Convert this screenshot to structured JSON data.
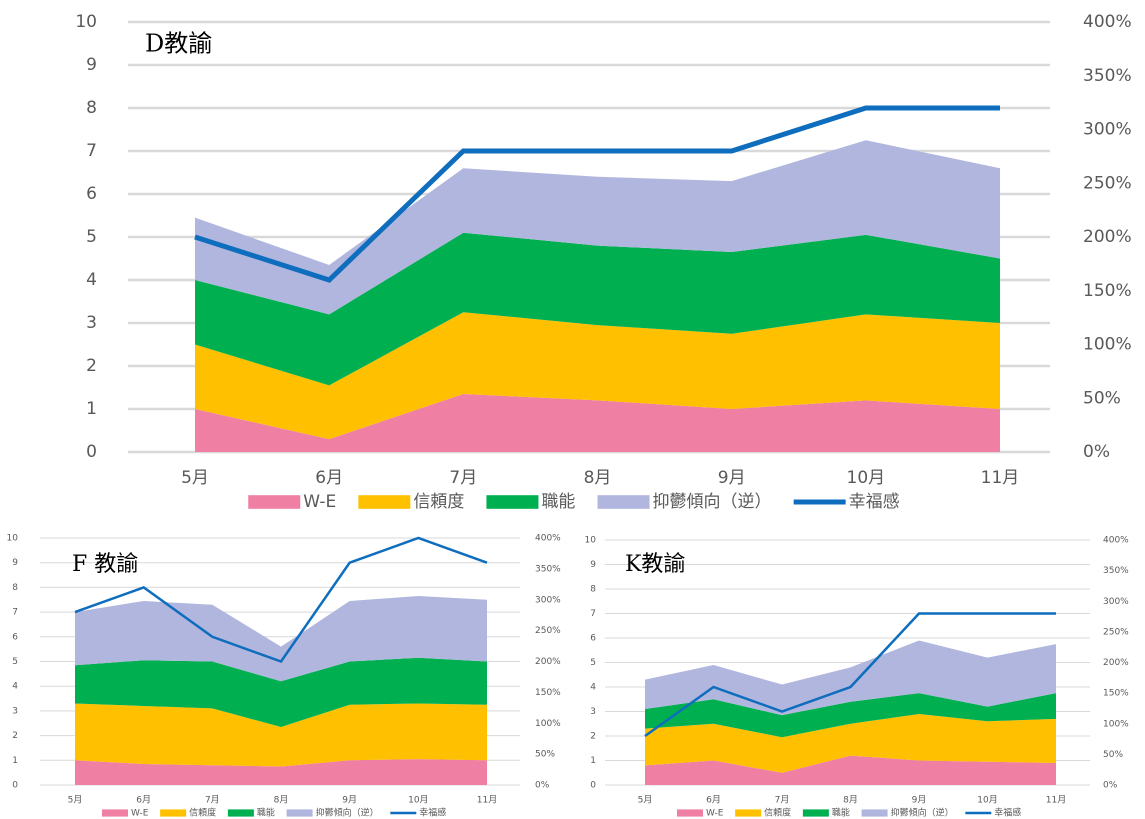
{
  "chart_data": [
    {
      "type": "area",
      "title": "D教諭",
      "categories": [
        "5月",
        "6月",
        "7月",
        "8月",
        "9月",
        "10月",
        "11月"
      ],
      "series": [
        {
          "name": "W-E",
          "color": "#f07fa4",
          "values": [
            1.0,
            0.3,
            1.35,
            1.2,
            1.0,
            1.2,
            1.0
          ]
        },
        {
          "name": "信頼度",
          "color": "#ffc000",
          "values": [
            1.5,
            1.25,
            1.9,
            1.75,
            1.75,
            2.0,
            2.0
          ]
        },
        {
          "name": "職能",
          "color": "#00b050",
          "values": [
            1.5,
            1.65,
            1.85,
            1.85,
            1.9,
            1.85,
            1.5
          ]
        },
        {
          "name": "抑鬱傾向（逆）",
          "color": "#b0b6de",
          "values": [
            1.45,
            1.15,
            1.5,
            1.6,
            1.65,
            2.2,
            2.1
          ]
        },
        {
          "name": "幸福感",
          "color": "#0e6ebd",
          "type": "line",
          "axis": "y2",
          "values": [
            200,
            160,
            280,
            280,
            280,
            320,
            320
          ]
        }
      ],
      "ylim": [
        0,
        10
      ],
      "yticks": [
        0,
        1,
        2,
        3,
        4,
        5,
        6,
        7,
        8,
        9,
        10
      ],
      "y2lim": [
        0,
        400
      ],
      "y2ticks": [
        {
          "value": 0,
          "label": "0%"
        },
        {
          "value": 50,
          "label": "50%"
        },
        {
          "value": 100,
          "label": "100%"
        },
        {
          "value": 150,
          "label": "150%"
        },
        {
          "value": 200,
          "label": "200%"
        },
        {
          "value": 250,
          "label": "250%"
        },
        {
          "value": 300,
          "label": "300%"
        },
        {
          "value": 350,
          "label": "350%"
        },
        {
          "value": 400,
          "label": "400%"
        }
      ],
      "grid": true,
      "legend": "bottom"
    },
    {
      "type": "area",
      "title": "F 教諭",
      "categories": [
        "5月",
        "6月",
        "7月",
        "8月",
        "9月",
        "10月",
        "11月"
      ],
      "series": [
        {
          "name": "W-E",
          "color": "#f07fa4",
          "values": [
            1.0,
            0.85,
            0.8,
            0.75,
            1.0,
            1.05,
            1.0
          ]
        },
        {
          "name": "信頼度",
          "color": "#ffc000",
          "values": [
            2.3,
            2.35,
            2.3,
            1.6,
            2.25,
            2.25,
            2.25
          ]
        },
        {
          "name": "職能",
          "color": "#00b050",
          "values": [
            1.55,
            1.85,
            1.9,
            1.85,
            1.75,
            1.85,
            1.75
          ]
        },
        {
          "name": "抑鬱傾向（逆）",
          "color": "#b0b6de",
          "values": [
            2.15,
            2.4,
            2.3,
            1.4,
            2.45,
            2.5,
            2.5
          ]
        },
        {
          "name": "幸福感",
          "color": "#0e6ebd",
          "type": "line",
          "axis": "y2",
          "values": [
            280,
            320,
            240,
            200,
            360,
            400,
            360
          ]
        }
      ],
      "ylim": [
        0,
        10
      ],
      "yticks": [
        0,
        1,
        2,
        3,
        4,
        5,
        6,
        7,
        8,
        9,
        10
      ],
      "y2lim": [
        0,
        400
      ],
      "y2ticks": [
        {
          "value": 0,
          "label": "0%"
        },
        {
          "value": 50,
          "label": "50%"
        },
        {
          "value": 100,
          "label": "100%"
        },
        {
          "value": 150,
          "label": "150%"
        },
        {
          "value": 200,
          "label": "200%"
        },
        {
          "value": 250,
          "label": "250%"
        },
        {
          "value": 300,
          "label": "300%"
        },
        {
          "value": 350,
          "label": "350%"
        },
        {
          "value": 400,
          "label": "400%"
        }
      ],
      "grid": true,
      "legend": "bottom"
    },
    {
      "type": "area",
      "title": "K教諭",
      "categories": [
        "5月",
        "6月",
        "7月",
        "8月",
        "9月",
        "10月",
        "11月"
      ],
      "series": [
        {
          "name": "W-E",
          "color": "#f07fa4",
          "values": [
            0.8,
            1.0,
            0.5,
            1.2,
            1.0,
            0.95,
            0.9
          ]
        },
        {
          "name": "信頼度",
          "color": "#ffc000",
          "values": [
            1.5,
            1.5,
            1.45,
            1.3,
            1.9,
            1.65,
            1.8
          ]
        },
        {
          "name": "職能",
          "color": "#00b050",
          "values": [
            0.8,
            1.0,
            0.9,
            0.9,
            0.85,
            0.6,
            1.05
          ]
        },
        {
          "name": "抑鬱傾向（逆）",
          "color": "#b0b6de",
          "values": [
            1.2,
            1.4,
            1.25,
            1.4,
            2.15,
            2.0,
            2.0
          ]
        },
        {
          "name": "幸福感",
          "color": "#0e6ebd",
          "type": "line",
          "axis": "y2",
          "values": [
            80,
            160,
            120,
            160,
            280,
            280,
            280
          ]
        }
      ],
      "ylim": [
        0,
        10
      ],
      "yticks": [
        0,
        1,
        2,
        3,
        4,
        5,
        6,
        7,
        8,
        9,
        10
      ],
      "y2lim": [
        0,
        400
      ],
      "y2ticks": [
        {
          "value": 0,
          "label": "0%"
        },
        {
          "value": 50,
          "label": "50%"
        },
        {
          "value": 100,
          "label": "100%"
        },
        {
          "value": 150,
          "label": "150%"
        },
        {
          "value": 200,
          "label": "200%"
        },
        {
          "value": 250,
          "label": "250%"
        },
        {
          "value": 300,
          "label": "300%"
        },
        {
          "value": 350,
          "label": "350%"
        },
        {
          "value": 400,
          "label": "400%"
        }
      ],
      "grid": true,
      "legend": "bottom"
    }
  ]
}
